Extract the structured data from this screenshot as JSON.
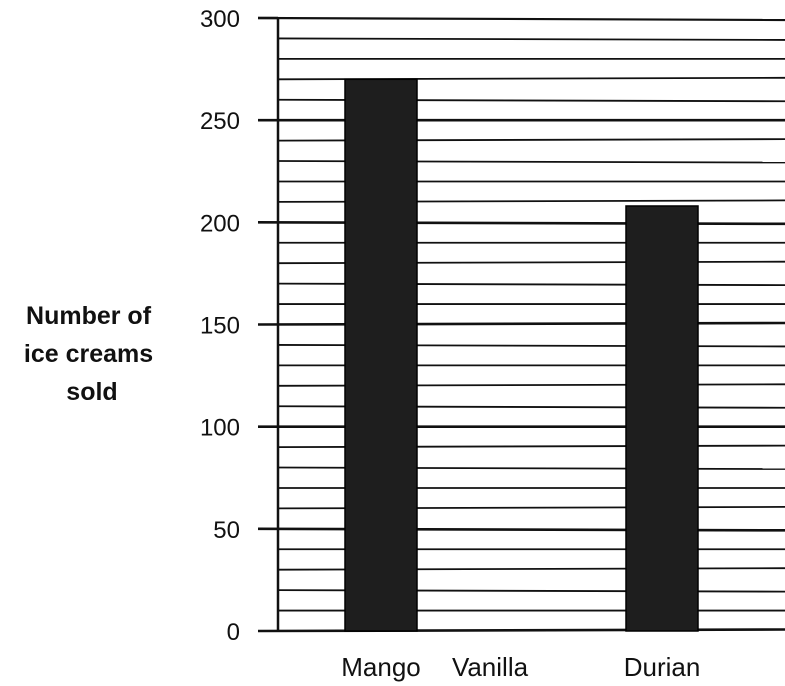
{
  "chart_data": {
    "type": "bar",
    "title": "",
    "xlabel": "",
    "ylabel_lines": [
      "Number of",
      "ice creams",
      "sold"
    ],
    "categories": [
      "Mango",
      "Vanilla",
      "Durian"
    ],
    "values": [
      270,
      null,
      208
    ],
    "ylim": [
      0,
      300
    ],
    "yticks": [
      0,
      50,
      100,
      150,
      200,
      250,
      300
    ],
    "grid": "horizontal",
    "bar_color": "#1e1e1e",
    "line_color": "#111111"
  }
}
